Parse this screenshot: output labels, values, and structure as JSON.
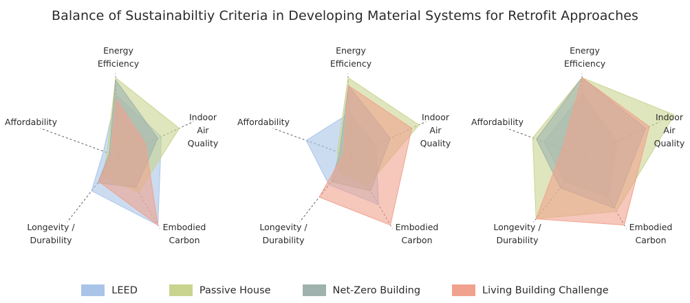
{
  "title": "Balance of Sustainabiltiy Criteria in Developing Material Systems for Retrofit Approaches",
  "axes": [
    [
      "Energy",
      "Efficiency"
    ],
    [
      "Indoor",
      "Air",
      "Quality"
    ],
    [
      "Embodied",
      "Carbon"
    ],
    [
      "Longevity /",
      "Durability"
    ],
    [
      "Affordability"
    ]
  ],
  "legend": [
    {
      "name": "LEED",
      "color": "#a9c4e8"
    },
    {
      "name": "Passive House",
      "color": "#c9d48f"
    },
    {
      "name": "Net-Zero Building",
      "color": "#9fb2ad"
    },
    {
      "name": "Living Building Challenge",
      "color": "#f0a28e"
    }
  ],
  "chart_data": [
    {
      "type": "radar",
      "categories": [
        "Energy Efficiency",
        "Indoor Air Quality",
        "Embodied Carbon",
        "Longevity / Durability",
        "Affordability"
      ],
      "rmax": 1,
      "series": [
        {
          "name": "LEED",
          "color": "#a9c4e8",
          "values": [
            0.78,
            0.6,
            1.0,
            0.55,
            0.2
          ]
        },
        {
          "name": "Passive House",
          "color": "#c9d48f",
          "values": [
            1.0,
            0.85,
            0.52,
            0.32,
            0.15
          ]
        },
        {
          "name": "Net-Zero Building",
          "color": "#9fb2ad",
          "values": [
            0.97,
            0.55,
            0.45,
            0.42,
            0.12
          ]
        },
        {
          "name": "Living Building Challenge",
          "color": "#f0a28e",
          "values": [
            0.73,
            0.38,
            1.0,
            0.4,
            0.1
          ]
        }
      ]
    },
    {
      "type": "radar",
      "categories": [
        "Energy Efficiency",
        "Indoor Air Quality",
        "Embodied Carbon",
        "Longevity / Durability",
        "Affordability"
      ],
      "rmax": 1,
      "series": [
        {
          "name": "LEED",
          "color": "#a9c4e8",
          "values": [
            0.55,
            0.35,
            0.7,
            0.45,
            0.6
          ]
        },
        {
          "name": "Passive House",
          "color": "#c9d48f",
          "values": [
            1.0,
            0.95,
            0.42,
            0.25,
            0.18
          ]
        },
        {
          "name": "Net-Zero Building",
          "color": "#9fb2ad",
          "values": [
            0.9,
            0.55,
            0.5,
            0.4,
            0.15
          ]
        },
        {
          "name": "Living Building Challenge",
          "color": "#f0a28e",
          "values": [
            0.9,
            0.85,
            1.0,
            0.65,
            0.1
          ]
        }
      ]
    },
    {
      "type": "radar",
      "categories": [
        "Energy Efficiency",
        "Indoor Air Quality",
        "Embodied Carbon",
        "Longevity / Durability",
        "Affordability"
      ],
      "rmax": 1,
      "series": [
        {
          "name": "LEED",
          "color": "#a9c4e8",
          "values": [
            0.8,
            0.45,
            0.6,
            0.4,
            0.55
          ]
        },
        {
          "name": "Passive House",
          "color": "#c9d48f",
          "values": [
            1.0,
            1.25,
            0.8,
            1.0,
            0.7
          ]
        },
        {
          "name": "Net-Zero Building",
          "color": "#9fb2ad",
          "values": [
            1.0,
            0.85,
            0.75,
            0.5,
            0.65
          ]
        },
        {
          "name": "Living Building Challenge",
          "color": "#f0a28e",
          "values": [
            1.0,
            0.9,
            1.0,
            1.0,
            0.3
          ]
        }
      ]
    }
  ]
}
